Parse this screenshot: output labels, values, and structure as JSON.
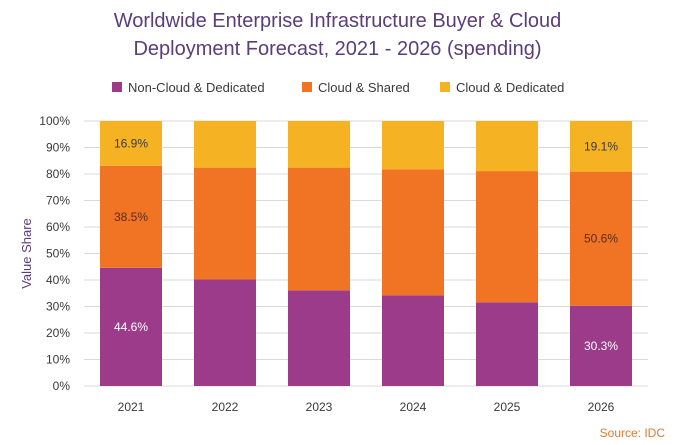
{
  "title_lines": [
    "Worldwide Enterprise Infrastructure Buyer & Cloud",
    "Deployment Forecast, 2021 - 2026 (spending)"
  ],
  "source": "Source: IDC",
  "colors": {
    "non_cloud": "#9b3b8a",
    "cloud_shared": "#f07423",
    "cloud_dedicated": "#f5b324",
    "grid": "#d9d9d9",
    "title": "#5b3d7a"
  },
  "chart_data": {
    "type": "bar",
    "stacked": true,
    "percent": true,
    "title": "Worldwide Enterprise Infrastructure Buyer & Cloud Deployment Forecast, 2021 - 2026 (spending)",
    "xlabel": "",
    "ylabel": "Value Share",
    "ylim": [
      0,
      100
    ],
    "yticks": [
      "0%",
      "10%",
      "20%",
      "30%",
      "40%",
      "50%",
      "60%",
      "70%",
      "80%",
      "90%",
      "100%"
    ],
    "categories": [
      "2021",
      "2022",
      "2023",
      "2024",
      "2025",
      "2026"
    ],
    "legend_position": "top",
    "grid": true,
    "series": [
      {
        "name": "Non-Cloud & Dedicated",
        "color": "#9b3b8a",
        "values": [
          44.6,
          40.2,
          36.1,
          34.2,
          31.6,
          30.3
        ],
        "labels": [
          "44.6%",
          "",
          "",
          "",
          "",
          "30.3%"
        ]
      },
      {
        "name": "Cloud & Shared",
        "color": "#f07423",
        "values": [
          38.5,
          42.2,
          46.3,
          47.6,
          49.5,
          50.6
        ],
        "labels": [
          "38.5%",
          "",
          "",
          "",
          "",
          "50.6%"
        ]
      },
      {
        "name": "Cloud & Dedicated",
        "color": "#f5b324",
        "values": [
          16.9,
          17.6,
          17.6,
          18.2,
          18.9,
          19.1
        ],
        "labels": [
          "16.9%",
          "",
          "",
          "",
          "",
          "19.1%"
        ]
      }
    ]
  }
}
